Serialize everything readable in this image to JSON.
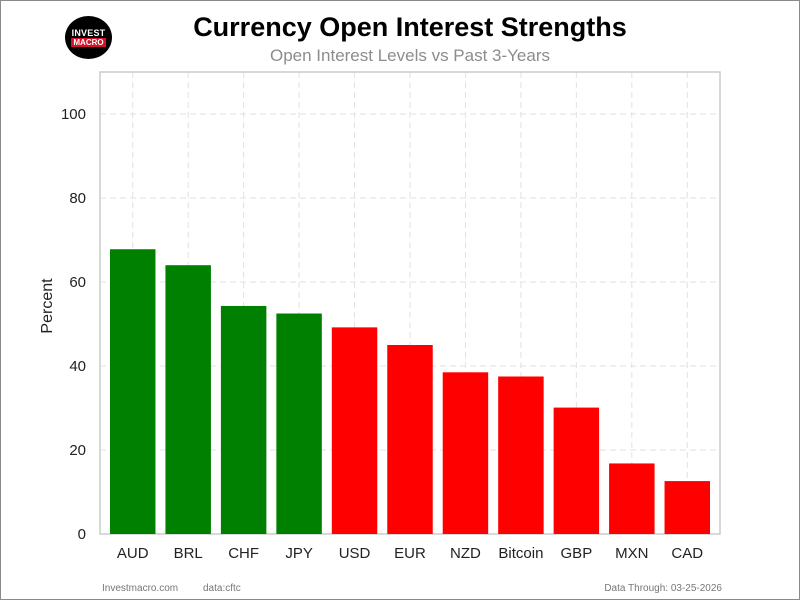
{
  "logo": {
    "line1": "INVEST",
    "line2": "MACRO"
  },
  "chart_data": {
    "type": "bar",
    "title": "Currency Open Interest Strengths",
    "subtitle": "Open Interest Levels vs Past 3-Years",
    "ylabel": "Percent",
    "xlabel": "",
    "categories": [
      "AUD",
      "BRL",
      "CHF",
      "JPY",
      "USD",
      "EUR",
      "NZD",
      "Bitcoin",
      "GBP",
      "MXN",
      "CAD"
    ],
    "values": [
      67.8,
      64.0,
      54.3,
      52.5,
      49.2,
      45.0,
      38.5,
      37.5,
      30.1,
      16.8,
      12.6
    ],
    "bar_colors": [
      "#008000",
      "#008000",
      "#008000",
      "#008000",
      "#ff0000",
      "#ff0000",
      "#ff0000",
      "#ff0000",
      "#ff0000",
      "#ff0000",
      "#ff0000"
    ],
    "ylim": [
      0,
      110
    ],
    "yticks": [
      0,
      20,
      40,
      60,
      80,
      100
    ],
    "grid": true
  },
  "footer": {
    "site": "Investmacro.com",
    "source": "data:cftc",
    "date": "Data Through: 03-25-2026"
  }
}
